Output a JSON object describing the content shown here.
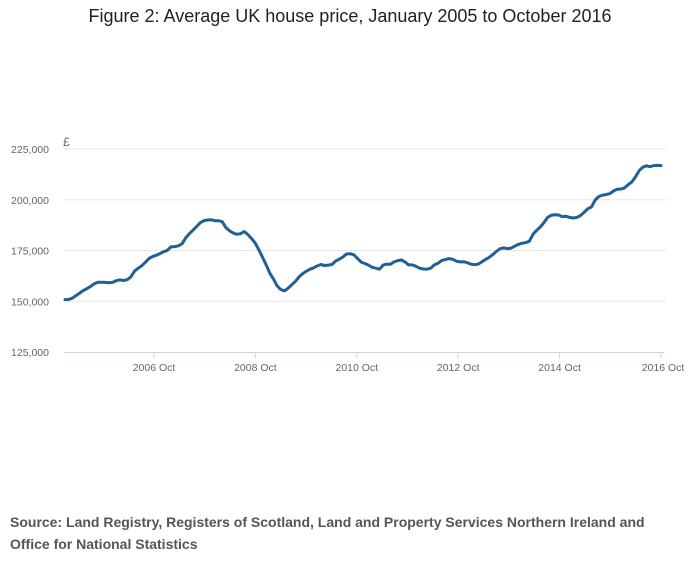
{
  "title": "Figure 2: Average UK house price, January 2005 to October 2016",
  "source": "Source: Land Registry, Registers of Scotland, Land and Property Services Northern Ireland and Office for National Statistics",
  "chart_data": {
    "type": "line",
    "title": "Figure 2: Average UK house price, January 2005 to October 2016",
    "ylabel": "£",
    "xlabel": "",
    "ylim": [
      125000,
      225000
    ],
    "yticks": [
      125000,
      150000,
      175000,
      200000,
      225000
    ],
    "ytick_labels": [
      "125,000",
      "150,000",
      "175,000",
      "200,000",
      "225,000"
    ],
    "xtick_labels": [
      "2006 Oct",
      "2008 Oct",
      "2010 Oct",
      "2012 Oct",
      "2014 Oct",
      "2016 Oct"
    ],
    "x_start": "2005-01",
    "x_end": "2016-10",
    "grid": true,
    "colors": {
      "line": "#206095",
      "grid": "#e6e6e6",
      "axis": "#ccd6eb"
    },
    "series": [
      {
        "values": [
          150800,
          150900,
          151500,
          152800,
          154000,
          155300,
          156200,
          157300,
          158600,
          159400,
          159400,
          159300,
          159100,
          159300,
          160100,
          160500,
          160200,
          160600,
          162000,
          164800,
          166300,
          167500,
          169200,
          171100,
          172100,
          172700,
          173500,
          174400,
          175100,
          176800,
          176900,
          177300,
          178300,
          181200,
          183300,
          185000,
          186800,
          188700,
          189700,
          190000,
          190100,
          189700,
          189700,
          189200,
          186300,
          184700,
          183600,
          183000,
          183300,
          184300,
          182900,
          180900,
          178800,
          175400,
          171800,
          168000,
          163800,
          161000,
          157600,
          155800,
          155100,
          156400,
          158100,
          159800,
          162000,
          163600,
          164800,
          165800,
          166500,
          167400,
          168100,
          167600,
          167800,
          168100,
          169800,
          170700,
          171800,
          173300,
          173400,
          172900,
          171100,
          169300,
          168600,
          167800,
          166700,
          166300,
          165800,
          167800,
          168300,
          168200,
          169400,
          170000,
          170300,
          169400,
          167900,
          167900,
          167200,
          166300,
          165900,
          165800,
          166300,
          167900,
          168700,
          170000,
          170500,
          171000,
          170700,
          169800,
          169400,
          169500,
          169000,
          168300,
          168000,
          168300,
          169400,
          170600,
          171600,
          173000,
          174600,
          175900,
          176300,
          175900,
          176200,
          177100,
          178000,
          178600,
          178900,
          179600,
          183000,
          185000,
          186600,
          188800,
          191300,
          192400,
          192600,
          192500,
          191700,
          191900,
          191300,
          191000,
          191300,
          192300,
          193800,
          195600,
          196500,
          199900,
          201600,
          202300,
          202600,
          203000,
          204300,
          205200,
          205300,
          205800,
          207400,
          208700,
          211200,
          214300,
          216000,
          216700,
          216300,
          216800,
          216900,
          216800
        ]
      }
    ]
  }
}
